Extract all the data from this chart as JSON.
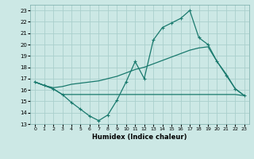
{
  "xlabel": "Humidex (Indice chaleur)",
  "background_color": "#cce8e5",
  "grid_color": "#aacfcc",
  "line_color": "#1a7a6e",
  "xlim": [
    -0.5,
    23.5
  ],
  "ylim": [
    13,
    23.5
  ],
  "yticks": [
    13,
    14,
    15,
    16,
    17,
    18,
    19,
    20,
    21,
    22,
    23
  ],
  "xticks": [
    0,
    1,
    2,
    3,
    4,
    5,
    6,
    7,
    8,
    9,
    10,
    11,
    12,
    13,
    14,
    15,
    16,
    17,
    18,
    19,
    20,
    21,
    22,
    23
  ],
  "line1_x": [
    0,
    1,
    2,
    3,
    4,
    5,
    6,
    7,
    8,
    9,
    10,
    11,
    12,
    13,
    14,
    15,
    16,
    17,
    18,
    19,
    20,
    21,
    22,
    23
  ],
  "line1_y": [
    16.7,
    16.4,
    16.1,
    15.6,
    14.9,
    14.3,
    13.7,
    13.3,
    13.8,
    15.1,
    16.7,
    18.5,
    17.0,
    20.4,
    21.5,
    21.9,
    22.3,
    23.0,
    20.6,
    20.0,
    18.5,
    17.3,
    16.1,
    15.5
  ],
  "line2_x": [
    0,
    1,
    2,
    3,
    4,
    5,
    6,
    7,
    8,
    9,
    10,
    11,
    12,
    13,
    14,
    15,
    16,
    17,
    18,
    19,
    20,
    21,
    22,
    23
  ],
  "line2_y": [
    16.7,
    16.4,
    16.1,
    15.6,
    15.6,
    15.6,
    15.6,
    15.6,
    15.6,
    15.6,
    15.6,
    15.6,
    15.6,
    15.6,
    15.6,
    15.6,
    15.6,
    15.6,
    15.6,
    15.6,
    15.6,
    15.6,
    15.6,
    15.5
  ],
  "line3_x": [
    0,
    1,
    2,
    3,
    4,
    5,
    6,
    7,
    8,
    9,
    10,
    11,
    12,
    13,
    14,
    15,
    16,
    17,
    18,
    19,
    20,
    21,
    22,
    23
  ],
  "line3_y": [
    16.7,
    16.4,
    16.2,
    16.3,
    16.5,
    16.6,
    16.7,
    16.8,
    17.0,
    17.2,
    17.5,
    17.8,
    18.0,
    18.3,
    18.6,
    18.9,
    19.2,
    19.5,
    19.7,
    19.8,
    18.5,
    17.4,
    16.1,
    15.5
  ]
}
